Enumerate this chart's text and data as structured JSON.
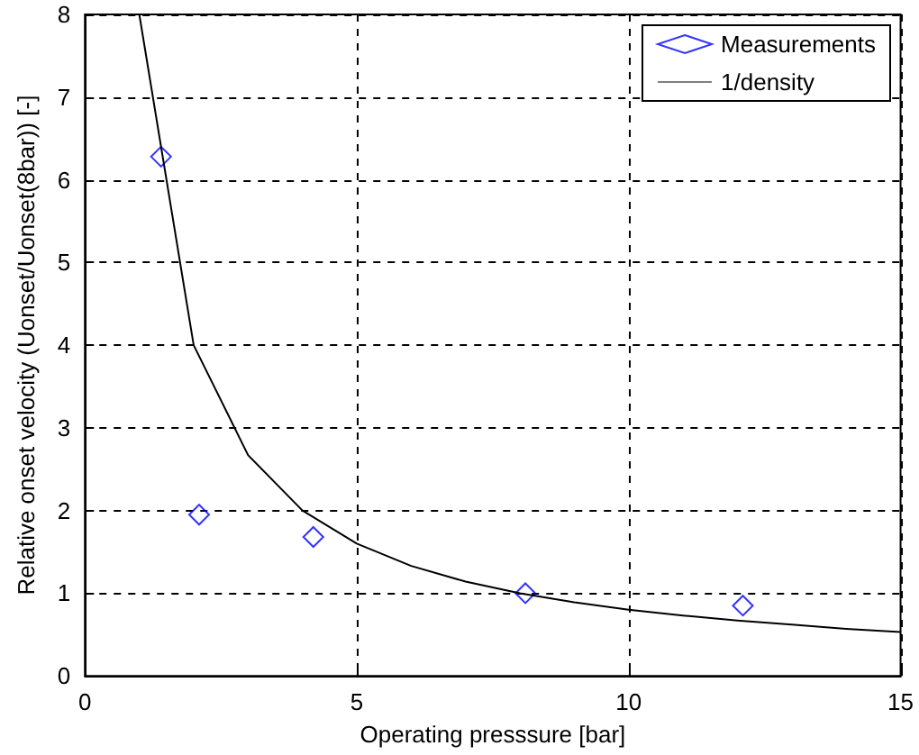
{
  "chart_data": {
    "type": "scatter",
    "xlabel": "Operating presssure [bar]",
    "ylabel": "Relative onset velocity (Uonset/Uonset(8bar)) [-]",
    "xlim": [
      0,
      15
    ],
    "xticks": [
      0,
      5,
      10,
      15
    ],
    "ylim": [
      0,
      8
    ],
    "yticks": [
      0,
      1,
      2,
      3,
      4,
      5,
      6,
      7,
      8
    ],
    "grid": true,
    "legend": "top right",
    "series": [
      {
        "name": "Measurements",
        "marker": "diamond",
        "color": "#0000ff",
        "x": [
          1.4,
          2.1,
          4.2,
          8.1,
          12.1
        ],
        "values": [
          6.28,
          1.95,
          1.68,
          1.0,
          0.85
        ]
      },
      {
        "name": "1/density",
        "type": "line",
        "marker": "none",
        "line_style": "solid",
        "color": "#000000",
        "x": [
          1,
          2,
          3,
          4,
          5,
          6,
          7,
          8,
          9,
          10,
          11,
          12,
          13,
          14,
          15
        ],
        "values": [
          8,
          4,
          2.67,
          2,
          1.6,
          1.33,
          1.14,
          1,
          0.89,
          0.8,
          0.73,
          0.67,
          0.62,
          0.57,
          0.53
        ]
      }
    ]
  }
}
